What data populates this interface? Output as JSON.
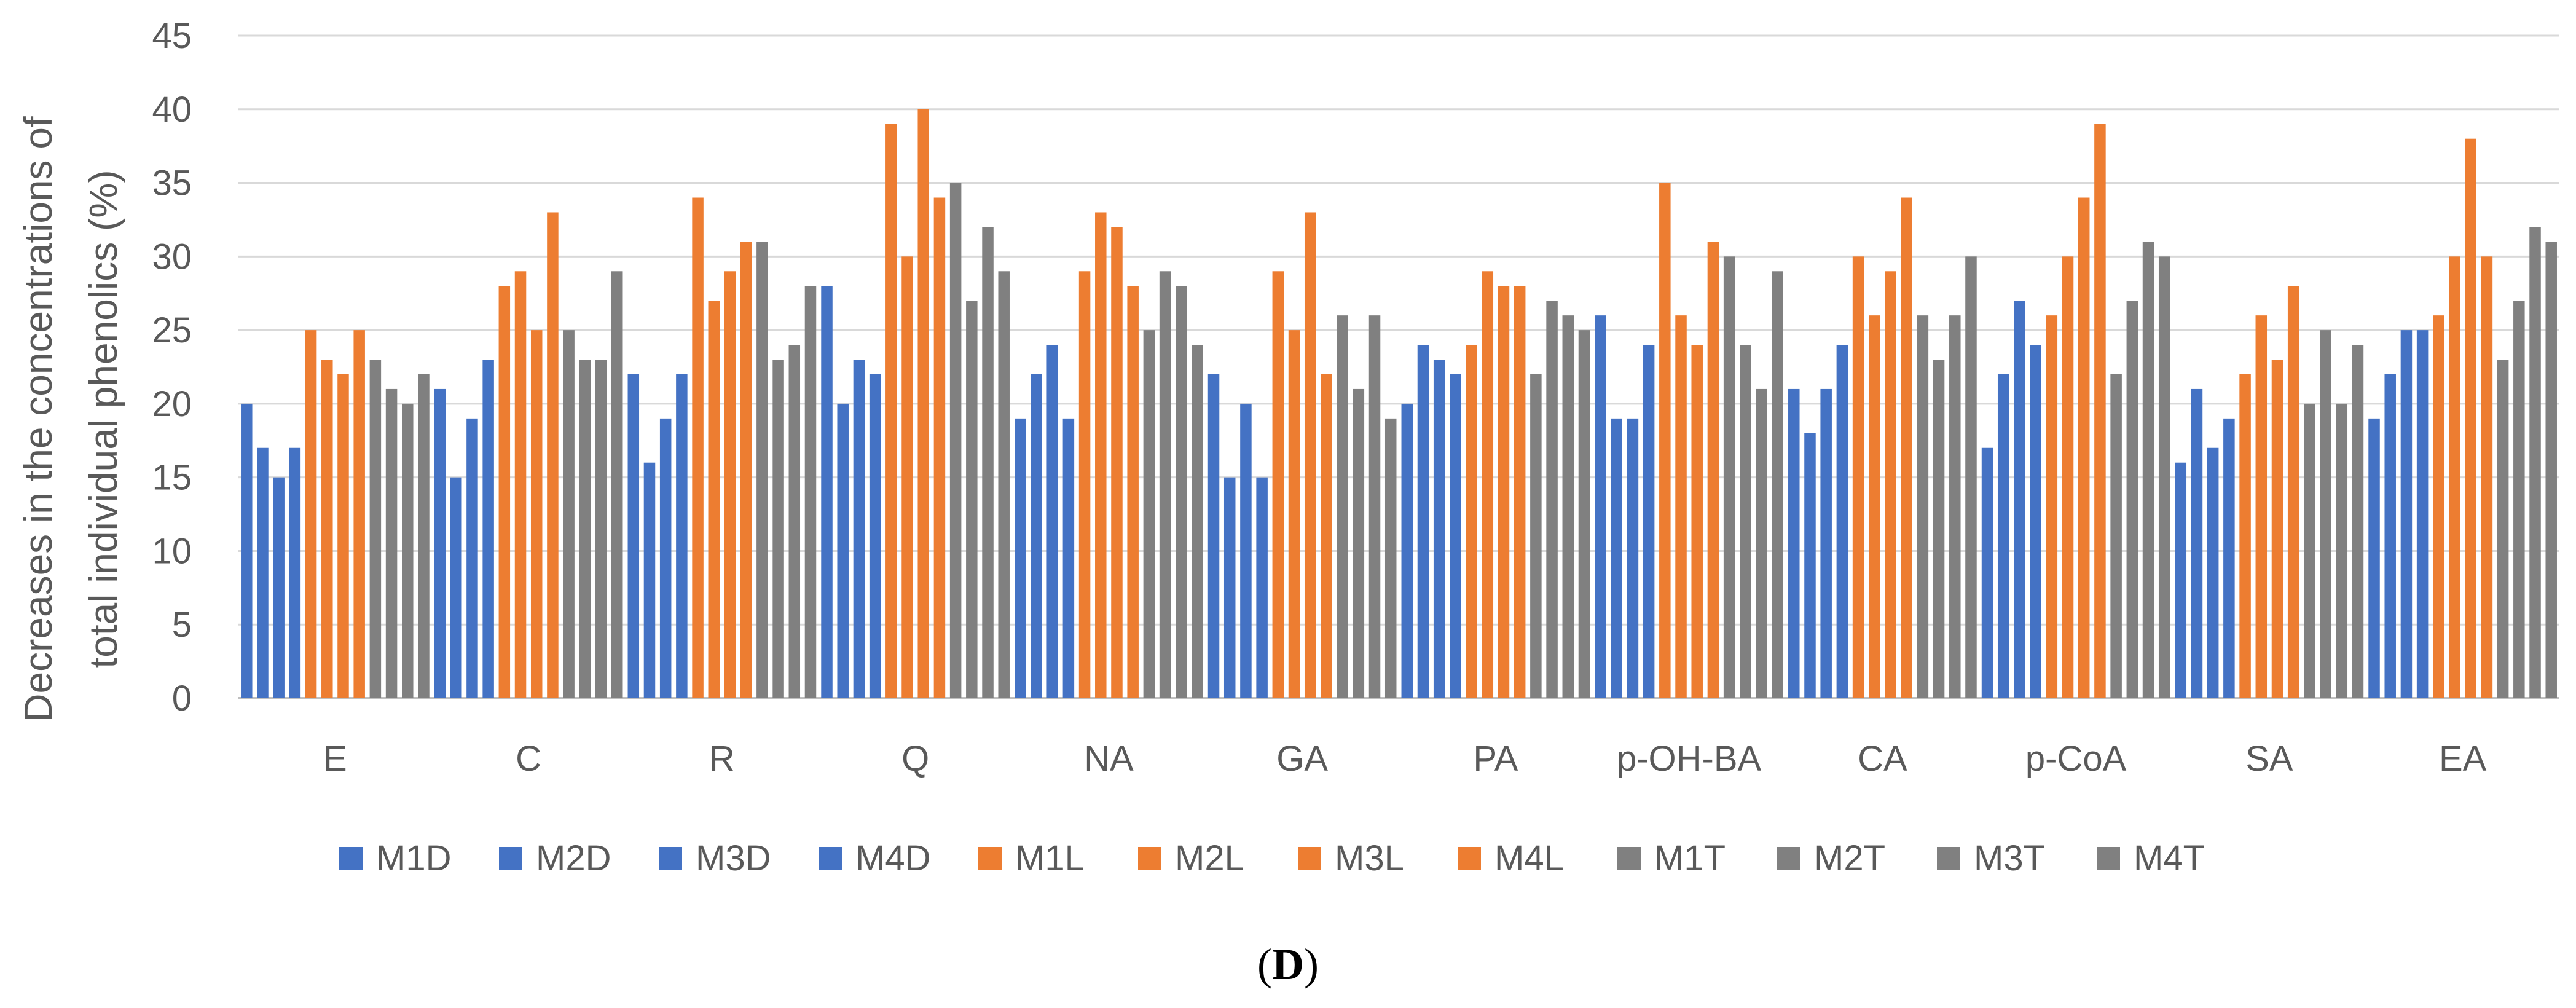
{
  "chart_data": {
    "type": "bar",
    "title": "",
    "xlabel": "",
    "ylabel": "Decreases in the concentrations of total individual phenolics (%)",
    "ylabel_lines": [
      "Decreases in the concentrations of",
      "total individual phenolics (%)"
    ],
    "ylim": [
      0,
      45
    ],
    "yticks": [
      0,
      5,
      10,
      15,
      20,
      25,
      30,
      35,
      40,
      45
    ],
    "grid": true,
    "legend_position": "bottom",
    "categories": [
      "E",
      "C",
      "R",
      "Q",
      "NA",
      "GA",
      "PA",
      "p-OH-BA",
      "CA",
      "p-CoA",
      "SA",
      "EA"
    ],
    "series": [
      {
        "name": "M1D",
        "color": "#4472C4",
        "values": [
          20,
          21,
          22,
          28,
          19,
          22,
          20,
          26,
          21,
          17,
          16,
          19
        ]
      },
      {
        "name": "M2D",
        "color": "#4472C4",
        "values": [
          17,
          15,
          16,
          20,
          22,
          15,
          24,
          19,
          18,
          22,
          21,
          22
        ]
      },
      {
        "name": "M3D",
        "color": "#4472C4",
        "values": [
          15,
          19,
          19,
          23,
          24,
          20,
          23,
          19,
          21,
          27,
          17,
          25
        ]
      },
      {
        "name": "M4D",
        "color": "#4472C4",
        "values": [
          17,
          23,
          22,
          22,
          19,
          15,
          22,
          24,
          24,
          24,
          19,
          25
        ]
      },
      {
        "name": "M1L",
        "color": "#ED7D31",
        "values": [
          25,
          28,
          34,
          39,
          29,
          29,
          24,
          35,
          30,
          26,
          22,
          26
        ]
      },
      {
        "name": "M2L",
        "color": "#ED7D31",
        "values": [
          23,
          29,
          27,
          30,
          33,
          25,
          29,
          26,
          26,
          30,
          26,
          30
        ]
      },
      {
        "name": "M3L",
        "color": "#ED7D31",
        "values": [
          22,
          25,
          29,
          40,
          32,
          33,
          28,
          24,
          29,
          34,
          23,
          38
        ]
      },
      {
        "name": "M4L",
        "color": "#ED7D31",
        "values": [
          25,
          33,
          31,
          34,
          28,
          22,
          28,
          31,
          34,
          39,
          28,
          30
        ]
      },
      {
        "name": "M1T",
        "color": "#808080",
        "values": [
          23,
          25,
          31,
          35,
          25,
          26,
          22,
          30,
          26,
          22,
          20,
          23
        ]
      },
      {
        "name": "M2T",
        "color": "#808080",
        "values": [
          21,
          23,
          23,
          27,
          29,
          21,
          27,
          24,
          23,
          27,
          25,
          27
        ]
      },
      {
        "name": "M3T",
        "color": "#808080",
        "values": [
          20,
          23,
          24,
          32,
          28,
          26,
          26,
          21,
          26,
          31,
          20,
          32
        ]
      },
      {
        "name": "M4T",
        "color": "#808080",
        "values": [
          22,
          29,
          28,
          29,
          24,
          19,
          25,
          29,
          30,
          30,
          24,
          31
        ]
      }
    ]
  },
  "caption": {
    "open": "(",
    "label": "D",
    "close": ")"
  }
}
